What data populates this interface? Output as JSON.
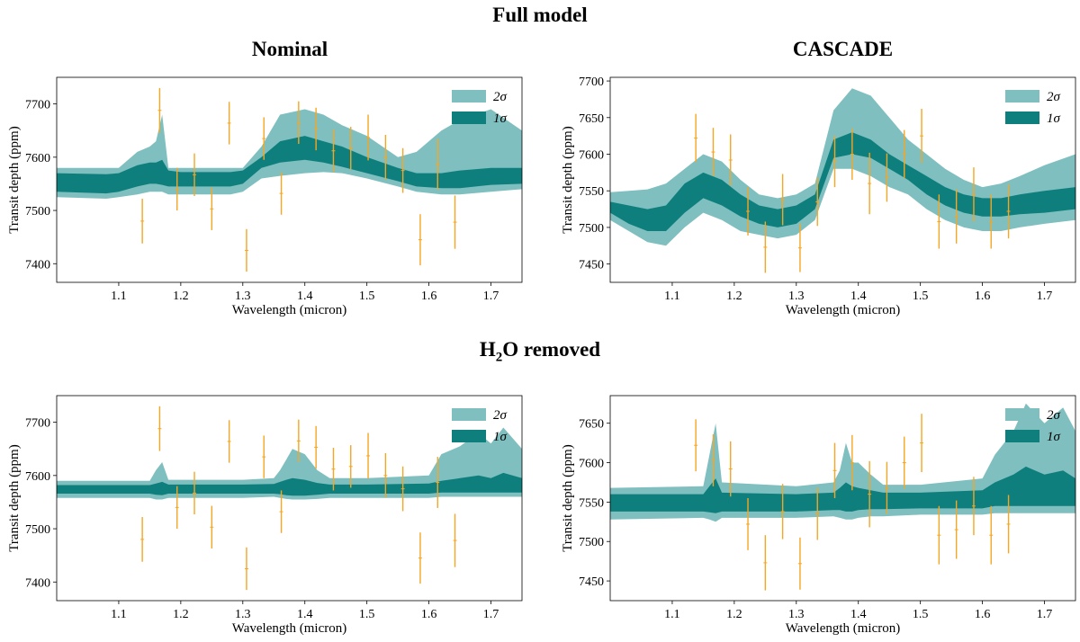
{
  "figure": {
    "row_titles": [
      "Full model",
      "H2O removed"
    ],
    "row_title_h2o": {
      "prefix": "H",
      "sub": "2",
      "suffix": "O removed"
    },
    "col_titles": [
      "Nominal",
      "CASCADE"
    ]
  },
  "colors": {
    "band_2sigma": "#7fbfbf",
    "band_1sigma": "#0e7f7c",
    "errorbar": "#f5a623"
  },
  "chart_data": [
    {
      "type": "area",
      "id": "full-nominal",
      "row": "Full model",
      "col": "Nominal",
      "xlabel": "Wavelength (micron)",
      "ylabel": "Transit depth (ppm)",
      "xlim": [
        1.0,
        1.75
      ],
      "ylim": [
        7365,
        7750
      ],
      "xticks": [
        1.1,
        1.2,
        1.3,
        1.4,
        1.5,
        1.6,
        1.7
      ],
      "xtick_labels": [
        "1.1",
        "1.2",
        "1.3",
        "1.4",
        "1.5",
        "1.6",
        "1.7"
      ],
      "yticks": [
        7400,
        7500,
        7600,
        7700
      ],
      "ytick_labels": [
        "7400",
        "7500",
        "7600",
        "7700"
      ],
      "legend": {
        "position": "top-right",
        "entries": [
          "2σ",
          "1σ"
        ]
      },
      "band_x": [
        1.0,
        1.08,
        1.1,
        1.13,
        1.15,
        1.16,
        1.17,
        1.18,
        1.2,
        1.28,
        1.3,
        1.33,
        1.36,
        1.4,
        1.43,
        1.46,
        1.5,
        1.55,
        1.58,
        1.62,
        1.65,
        1.7,
        1.75
      ],
      "band_2sigma_upper": [
        7580,
        7580,
        7580,
        7610,
        7620,
        7630,
        7680,
        7580,
        7580,
        7580,
        7580,
        7620,
        7680,
        7690,
        7680,
        7660,
        7640,
        7600,
        7610,
        7650,
        7670,
        7690,
        7650
      ],
      "band_2sigma_lower": [
        7525,
        7522,
        7525,
        7530,
        7535,
        7535,
        7535,
        7530,
        7530,
        7530,
        7535,
        7560,
        7565,
        7570,
        7572,
        7570,
        7560,
        7545,
        7535,
        7530,
        7530,
        7535,
        7540
      ],
      "band_1sigma_upper": [
        7570,
        7568,
        7570,
        7585,
        7590,
        7590,
        7595,
        7575,
        7572,
        7572,
        7575,
        7600,
        7630,
        7640,
        7630,
        7620,
        7600,
        7580,
        7570,
        7570,
        7575,
        7580,
        7580
      ],
      "band_1sigma_lower": [
        7535,
        7532,
        7535,
        7545,
        7550,
        7550,
        7548,
        7545,
        7545,
        7545,
        7550,
        7580,
        7590,
        7595,
        7590,
        7582,
        7570,
        7555,
        7545,
        7542,
        7542,
        7548,
        7550
      ],
      "points": [
        {
          "x": 1.138,
          "y": 7480,
          "err": 42
        },
        {
          "x": 1.166,
          "y": 7688,
          "err": 42
        },
        {
          "x": 1.194,
          "y": 7540,
          "err": 40
        },
        {
          "x": 1.222,
          "y": 7567,
          "err": 40
        },
        {
          "x": 1.25,
          "y": 7503,
          "err": 40
        },
        {
          "x": 1.278,
          "y": 7664,
          "err": 40
        },
        {
          "x": 1.306,
          "y": 7425,
          "err": 40
        },
        {
          "x": 1.334,
          "y": 7635,
          "err": 40
        },
        {
          "x": 1.362,
          "y": 7532,
          "err": 40
        },
        {
          "x": 1.39,
          "y": 7665,
          "err": 40
        },
        {
          "x": 1.418,
          "y": 7653,
          "err": 40
        },
        {
          "x": 1.446,
          "y": 7612,
          "err": 40
        },
        {
          "x": 1.474,
          "y": 7617,
          "err": 40
        },
        {
          "x": 1.502,
          "y": 7637,
          "err": 43
        },
        {
          "x": 1.53,
          "y": 7600,
          "err": 42
        },
        {
          "x": 1.558,
          "y": 7575,
          "err": 42
        },
        {
          "x": 1.586,
          "y": 7445,
          "err": 48
        },
        {
          "x": 1.614,
          "y": 7587,
          "err": 48
        },
        {
          "x": 1.642,
          "y": 7478,
          "err": 50
        }
      ]
    },
    {
      "type": "area",
      "id": "full-cascade",
      "row": "Full model",
      "col": "CASCADE",
      "xlabel": "Wavelength (micron)",
      "ylabel": "Transit depth (ppm)",
      "xlim": [
        1.0,
        1.75
      ],
      "ylim": [
        7425,
        7705
      ],
      "xticks": [
        1.1,
        1.2,
        1.3,
        1.4,
        1.5,
        1.6,
        1.7
      ],
      "xtick_labels": [
        "1.1",
        "1.2",
        "1.3",
        "1.4",
        "1.5",
        "1.6",
        "1.7"
      ],
      "yticks": [
        7450,
        7500,
        7550,
        7600,
        7650,
        7700
      ],
      "ytick_labels": [
        "7450",
        "7500",
        "7550",
        "7600",
        "7650",
        "7700"
      ],
      "legend": {
        "position": "top-right",
        "entries": [
          "2σ",
          "1σ"
        ]
      },
      "band_x": [
        1.0,
        1.03,
        1.06,
        1.09,
        1.12,
        1.15,
        1.18,
        1.21,
        1.24,
        1.27,
        1.3,
        1.33,
        1.36,
        1.39,
        1.42,
        1.45,
        1.48,
        1.51,
        1.54,
        1.57,
        1.6,
        1.63,
        1.66,
        1.7,
        1.75
      ],
      "band_2sigma_upper": [
        7548,
        7550,
        7552,
        7560,
        7580,
        7600,
        7590,
        7565,
        7545,
        7540,
        7545,
        7560,
        7660,
        7690,
        7680,
        7650,
        7620,
        7600,
        7580,
        7565,
        7555,
        7560,
        7570,
        7585,
        7600
      ],
      "band_2sigma_lower": [
        7510,
        7495,
        7480,
        7475,
        7500,
        7520,
        7510,
        7495,
        7490,
        7485,
        7490,
        7510,
        7580,
        7580,
        7570,
        7555,
        7545,
        7525,
        7510,
        7500,
        7495,
        7495,
        7500,
        7505,
        7510
      ],
      "band_1sigma_upper": [
        7535,
        7530,
        7525,
        7530,
        7560,
        7575,
        7565,
        7545,
        7530,
        7525,
        7530,
        7545,
        7620,
        7630,
        7620,
        7600,
        7585,
        7570,
        7555,
        7545,
        7540,
        7540,
        7545,
        7550,
        7555
      ],
      "band_1sigma_lower": [
        7520,
        7505,
        7495,
        7495,
        7520,
        7540,
        7530,
        7515,
        7505,
        7500,
        7505,
        7525,
        7595,
        7600,
        7595,
        7580,
        7565,
        7545,
        7530,
        7520,
        7515,
        7515,
        7518,
        7520,
        7525
      ],
      "points": [
        {
          "x": 1.138,
          "y": 7622,
          "err": 33
        },
        {
          "x": 1.166,
          "y": 7603,
          "err": 33
        },
        {
          "x": 1.194,
          "y": 7592,
          "err": 35
        },
        {
          "x": 1.222,
          "y": 7522,
          "err": 33
        },
        {
          "x": 1.25,
          "y": 7473,
          "err": 35
        },
        {
          "x": 1.278,
          "y": 7538,
          "err": 35
        },
        {
          "x": 1.306,
          "y": 7472,
          "err": 33
        },
        {
          "x": 1.334,
          "y": 7535,
          "err": 33
        },
        {
          "x": 1.362,
          "y": 7590,
          "err": 35
        },
        {
          "x": 1.39,
          "y": 7600,
          "err": 35
        },
        {
          "x": 1.418,
          "y": 7560,
          "err": 42
        },
        {
          "x": 1.446,
          "y": 7568,
          "err": 33
        },
        {
          "x": 1.474,
          "y": 7600,
          "err": 33
        },
        {
          "x": 1.502,
          "y": 7625,
          "err": 37
        },
        {
          "x": 1.53,
          "y": 7508,
          "err": 37
        },
        {
          "x": 1.558,
          "y": 7515,
          "err": 37
        },
        {
          "x": 1.586,
          "y": 7545,
          "err": 37
        },
        {
          "x": 1.614,
          "y": 7508,
          "err": 37
        },
        {
          "x": 1.642,
          "y": 7522,
          "err": 37
        }
      ]
    },
    {
      "type": "area",
      "id": "h2o-nominal",
      "row": "H2O removed",
      "col": "Nominal",
      "xlabel": "Wavelength (micron)",
      "ylabel": "Transit depth (ppm)",
      "xlim": [
        1.0,
        1.75
      ],
      "ylim": [
        7365,
        7750
      ],
      "xticks": [
        1.1,
        1.2,
        1.3,
        1.4,
        1.5,
        1.6,
        1.7
      ],
      "xtick_labels": [
        "1.1",
        "1.2",
        "1.3",
        "1.4",
        "1.5",
        "1.6",
        "1.7"
      ],
      "yticks": [
        7400,
        7500,
        7600,
        7700
      ],
      "ytick_labels": [
        "7400",
        "7500",
        "7600",
        "7700"
      ],
      "legend": {
        "position": "top-right",
        "entries": [
          "2σ",
          "1σ"
        ]
      },
      "band_x": [
        1.0,
        1.15,
        1.16,
        1.17,
        1.18,
        1.3,
        1.35,
        1.36,
        1.37,
        1.38,
        1.4,
        1.42,
        1.44,
        1.5,
        1.6,
        1.62,
        1.65,
        1.68,
        1.7,
        1.72,
        1.75
      ],
      "band_2sigma_upper": [
        7590,
        7590,
        7610,
        7625,
        7592,
        7592,
        7595,
        7610,
        7630,
        7650,
        7640,
        7610,
        7595,
        7595,
        7600,
        7640,
        7655,
        7680,
        7660,
        7690,
        7650
      ],
      "band_2sigma_lower": [
        7558,
        7558,
        7555,
        7555,
        7558,
        7558,
        7560,
        7558,
        7556,
        7555,
        7555,
        7556,
        7558,
        7558,
        7558,
        7560,
        7560,
        7560,
        7560,
        7560,
        7560
      ],
      "band_1sigma_upper": [
        7582,
        7582,
        7585,
        7588,
        7583,
        7583,
        7584,
        7588,
        7592,
        7595,
        7592,
        7586,
        7583,
        7583,
        7585,
        7590,
        7595,
        7600,
        7595,
        7605,
        7595
      ],
      "band_1sigma_lower": [
        7566,
        7566,
        7564,
        7563,
        7566,
        7566,
        7566,
        7565,
        7563,
        7562,
        7562,
        7564,
        7566,
        7566,
        7566,
        7568,
        7568,
        7568,
        7568,
        7568,
        7568
      ],
      "points": [
        {
          "x": 1.138,
          "y": 7480,
          "err": 42
        },
        {
          "x": 1.166,
          "y": 7688,
          "err": 42
        },
        {
          "x": 1.194,
          "y": 7540,
          "err": 40
        },
        {
          "x": 1.222,
          "y": 7567,
          "err": 40
        },
        {
          "x": 1.25,
          "y": 7503,
          "err": 40
        },
        {
          "x": 1.278,
          "y": 7664,
          "err": 40
        },
        {
          "x": 1.306,
          "y": 7425,
          "err": 40
        },
        {
          "x": 1.334,
          "y": 7635,
          "err": 40
        },
        {
          "x": 1.362,
          "y": 7532,
          "err": 40
        },
        {
          "x": 1.39,
          "y": 7665,
          "err": 40
        },
        {
          "x": 1.418,
          "y": 7653,
          "err": 40
        },
        {
          "x": 1.446,
          "y": 7612,
          "err": 40
        },
        {
          "x": 1.474,
          "y": 7617,
          "err": 40
        },
        {
          "x": 1.502,
          "y": 7637,
          "err": 43
        },
        {
          "x": 1.53,
          "y": 7600,
          "err": 42
        },
        {
          "x": 1.558,
          "y": 7575,
          "err": 42
        },
        {
          "x": 1.586,
          "y": 7445,
          "err": 48
        },
        {
          "x": 1.614,
          "y": 7587,
          "err": 48
        },
        {
          "x": 1.642,
          "y": 7478,
          "err": 50
        }
      ]
    },
    {
      "type": "area",
      "id": "h2o-cascade",
      "row": "H2O removed",
      "col": "CASCADE",
      "xlabel": "Wavelength (micron)",
      "ylabel": "Transit depth (ppm)",
      "xlim": [
        1.0,
        1.75
      ],
      "ylim": [
        7425,
        7685
      ],
      "xticks": [
        1.1,
        1.2,
        1.3,
        1.4,
        1.5,
        1.6,
        1.7
      ],
      "xtick_labels": [
        "1.1",
        "1.2",
        "1.3",
        "1.4",
        "1.5",
        "1.6",
        "1.7"
      ],
      "yticks": [
        7450,
        7500,
        7550,
        7600,
        7650
      ],
      "ytick_labels": [
        "7450",
        "7500",
        "7550",
        "7600",
        "7650"
      ],
      "legend": {
        "position": "top-right",
        "entries": [
          "2σ",
          "1σ"
        ]
      },
      "band_x": [
        1.0,
        1.15,
        1.16,
        1.17,
        1.18,
        1.3,
        1.36,
        1.37,
        1.38,
        1.39,
        1.4,
        1.42,
        1.44,
        1.5,
        1.6,
        1.62,
        1.65,
        1.67,
        1.7,
        1.73,
        1.75
      ],
      "band_2sigma_upper": [
        7568,
        7570,
        7610,
        7650,
        7575,
        7570,
        7575,
        7590,
        7625,
        7600,
        7600,
        7585,
        7572,
        7572,
        7580,
        7610,
        7640,
        7675,
        7650,
        7670,
        7640
      ],
      "band_2sigma_lower": [
        7528,
        7530,
        7528,
        7525,
        7530,
        7530,
        7532,
        7530,
        7528,
        7528,
        7530,
        7532,
        7532,
        7534,
        7534,
        7536,
        7536,
        7536,
        7536,
        7536,
        7536
      ],
      "band_1sigma_upper": [
        7560,
        7560,
        7570,
        7580,
        7562,
        7560,
        7562,
        7568,
        7575,
        7570,
        7568,
        7565,
        7562,
        7562,
        7565,
        7575,
        7585,
        7595,
        7585,
        7590,
        7580
      ],
      "band_1sigma_lower": [
        7538,
        7538,
        7537,
        7536,
        7538,
        7538,
        7540,
        7540,
        7538,
        7538,
        7540,
        7541,
        7541,
        7542,
        7542,
        7545,
        7545,
        7545,
        7545,
        7545,
        7545
      ],
      "points": [
        {
          "x": 1.138,
          "y": 7622,
          "err": 33
        },
        {
          "x": 1.166,
          "y": 7603,
          "err": 33
        },
        {
          "x": 1.194,
          "y": 7592,
          "err": 35
        },
        {
          "x": 1.222,
          "y": 7522,
          "err": 33
        },
        {
          "x": 1.25,
          "y": 7473,
          "err": 35
        },
        {
          "x": 1.278,
          "y": 7538,
          "err": 35
        },
        {
          "x": 1.306,
          "y": 7472,
          "err": 33
        },
        {
          "x": 1.334,
          "y": 7535,
          "err": 33
        },
        {
          "x": 1.362,
          "y": 7590,
          "err": 35
        },
        {
          "x": 1.39,
          "y": 7600,
          "err": 35
        },
        {
          "x": 1.418,
          "y": 7560,
          "err": 42
        },
        {
          "x": 1.446,
          "y": 7568,
          "err": 33
        },
        {
          "x": 1.474,
          "y": 7600,
          "err": 33
        },
        {
          "x": 1.502,
          "y": 7625,
          "err": 37
        },
        {
          "x": 1.53,
          "y": 7508,
          "err": 37
        },
        {
          "x": 1.558,
          "y": 7515,
          "err": 37
        },
        {
          "x": 1.586,
          "y": 7545,
          "err": 37
        },
        {
          "x": 1.614,
          "y": 7508,
          "err": 37
        },
        {
          "x": 1.642,
          "y": 7522,
          "err": 37
        }
      ]
    }
  ]
}
